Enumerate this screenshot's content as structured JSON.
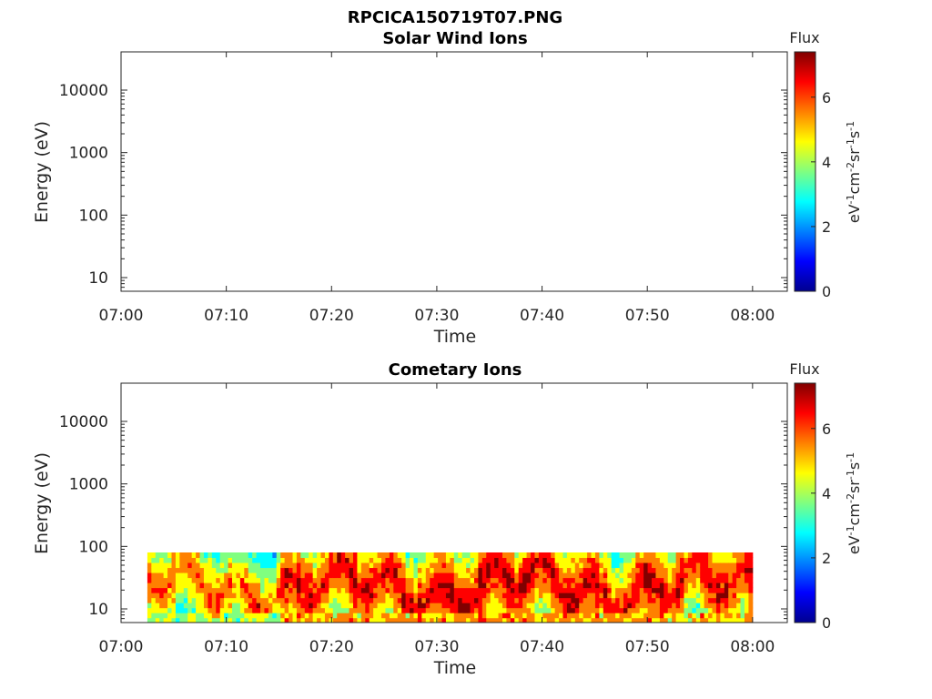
{
  "figure": {
    "title": "RPCICA150719T07.PNG"
  },
  "colormap": [
    "#00008f",
    "#0000ff",
    "#0080ff",
    "#00ffff",
    "#80ff80",
    "#ffff00",
    "#ff8000",
    "#ff0000",
    "#800000"
  ],
  "chart_data": [
    {
      "type": "heatmap",
      "title": "Solar Wind Ions",
      "xlabel": "Time",
      "ylabel": "Energy (eV)",
      "x_ticks": [
        "07:00",
        "07:10",
        "07:20",
        "07:30",
        "07:40",
        "07:50",
        "08:00"
      ],
      "y_ticks": [
        "10",
        "100",
        "1000",
        "10000"
      ],
      "y_scale": "log",
      "colorbar": {
        "label": "Flux",
        "unit": "eV-1cm-2sr-1s-1",
        "ticks": [
          "0",
          "2",
          "4",
          "6"
        ],
        "range": [
          0,
          7.4
        ]
      },
      "data_note": "",
      "energy_band_eV": [],
      "time_profile": []
    },
    {
      "type": "heatmap",
      "title": "Cometary Ions",
      "xlabel": "Time",
      "ylabel": "Energy (eV)",
      "x_ticks": [
        "07:00",
        "07:10",
        "07:20",
        "07:30",
        "07:40",
        "07:50",
        "08:00"
      ],
      "y_ticks": [
        "10",
        "100",
        "1000",
        "10000"
      ],
      "y_scale": "log",
      "colorbar": {
        "label": "Flux",
        "unit": "eV-1cm-2sr-1s-1",
        "ticks": [
          "0",
          "2",
          "4",
          "6"
        ],
        "range": [
          0,
          7.4
        ]
      },
      "data_note": "",
      "energy_band_eV": [
        6,
        80
      ],
      "time_range_min": [
        2.5,
        60
      ],
      "time_profile_minutes": [
        2.5,
        5,
        7,
        9,
        11,
        13,
        14,
        15,
        16,
        17,
        19,
        21,
        23,
        25,
        27,
        30,
        33,
        36,
        38,
        40,
        42,
        44,
        46,
        48,
        50,
        52,
        54,
        56,
        58,
        60
      ],
      "time_profile_peak_flux": [
        6.2,
        6.0,
        5.8,
        6.5,
        5.6,
        6.8,
        5.5,
        6.6,
        7.2,
        7.0,
        6.6,
        7.0,
        6.8,
        6.9,
        7.1,
        7.2,
        7.3,
        7.0,
        7.1,
        6.9,
        7.2,
        7.0,
        6.8,
        6.9,
        7.0,
        6.8,
        6.7,
        6.9,
        6.8,
        6.9
      ]
    }
  ]
}
